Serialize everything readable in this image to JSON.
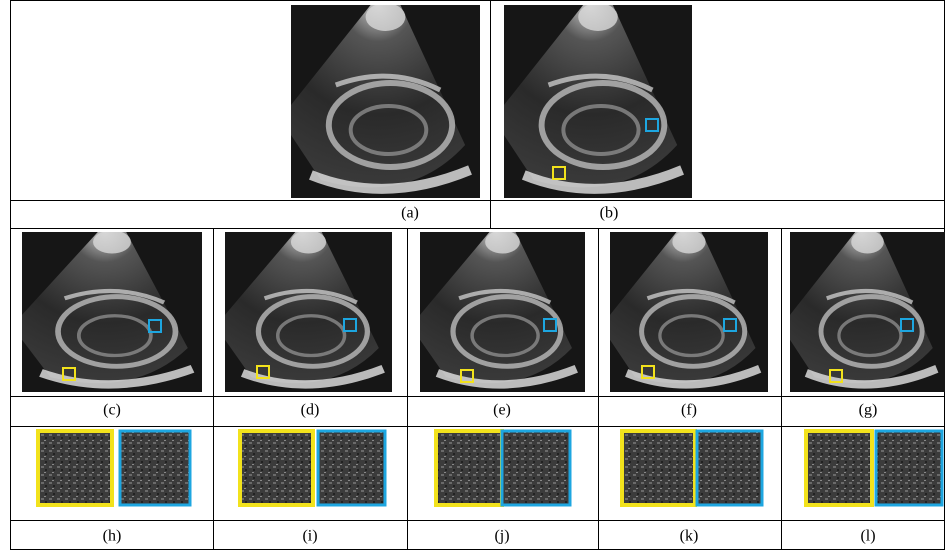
{
  "panels": [
    "(a)",
    "(b)",
    "(c)",
    "(d)",
    "(e)",
    "(f)",
    "(g)",
    "(h)",
    "(i)",
    "(j)",
    "(k)",
    "(l)"
  ]
}
